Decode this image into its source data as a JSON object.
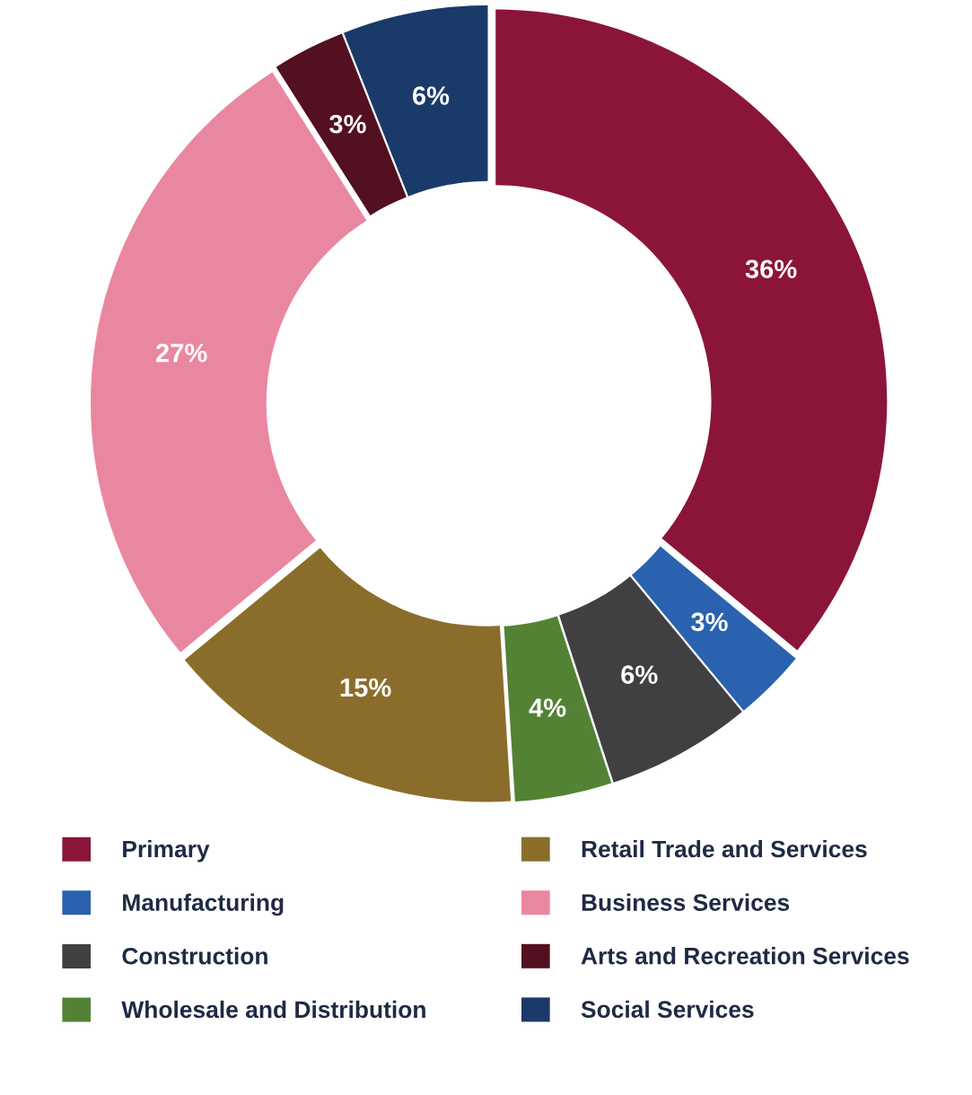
{
  "chart_data": {
    "type": "donut",
    "categories": [
      "Primary",
      "Manufacturing",
      "Construction",
      "Wholesale and Distribution",
      "Retail Trade and Services",
      "Business Services",
      "Arts and Recreation Services",
      "Social Services"
    ],
    "values": [
      36,
      3,
      6,
      4,
      15,
      27,
      3,
      6
    ],
    "colors": [
      "#8b1538",
      "#2a62b0",
      "#404042",
      "#548235",
      "#8b6d2b",
      "#ea87a0",
      "#521020",
      "#1a3a6a"
    ],
    "value_labels": [
      "36%",
      "3%",
      "6%",
      "4%",
      "15%",
      "27%",
      "3%",
      "6%"
    ],
    "legend": "bottom"
  }
}
